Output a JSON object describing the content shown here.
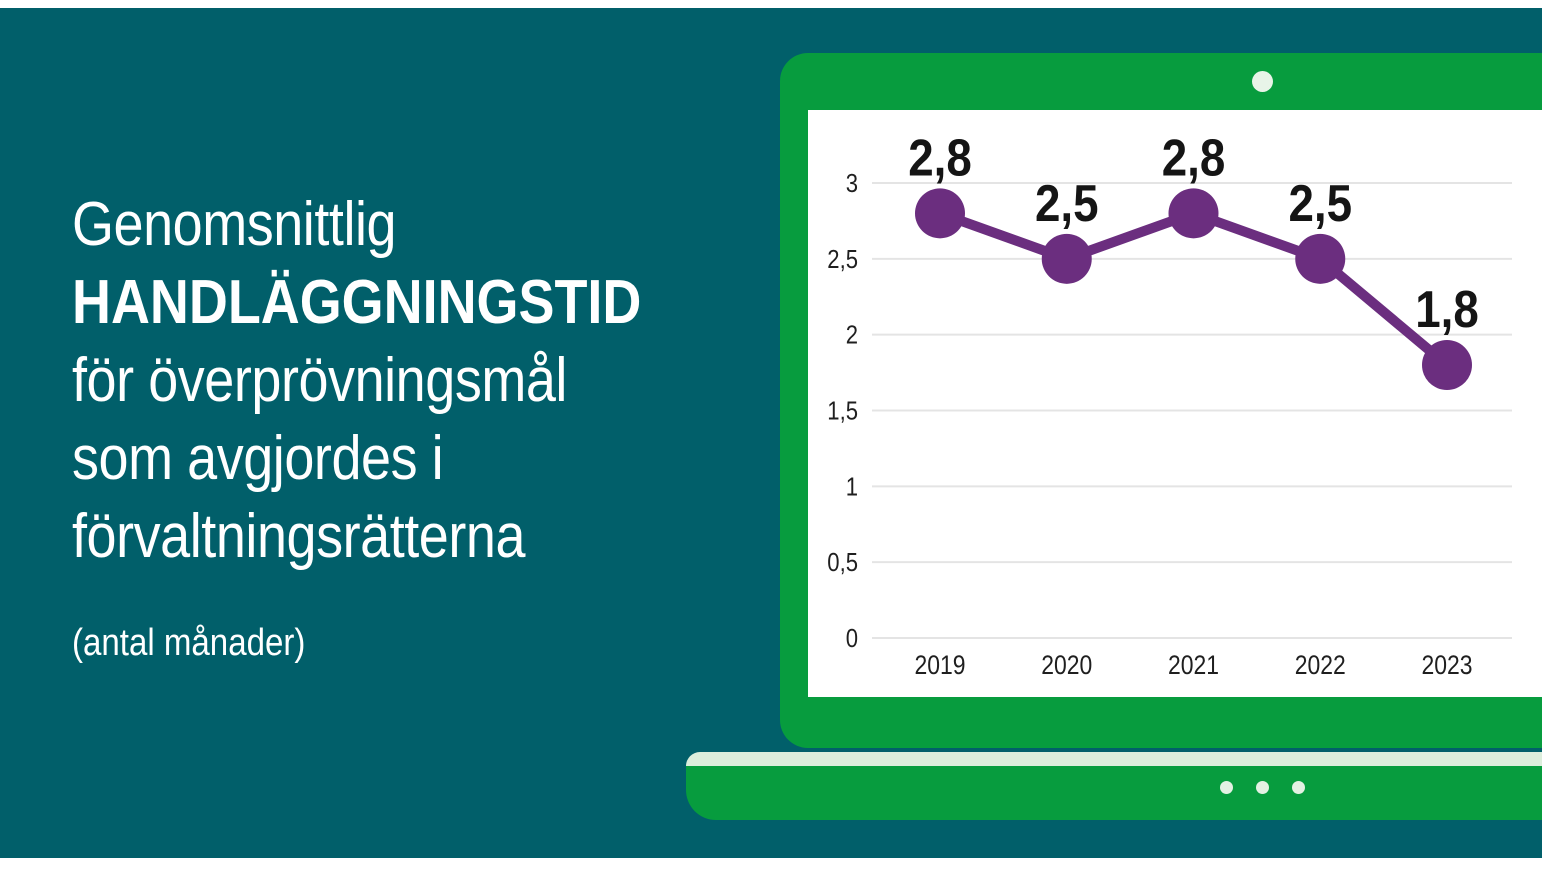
{
  "title": {
    "lines": [
      "Genomsnittlig",
      "HANDLÄGGNINGSTID",
      "för överprövningsmål",
      "som avgjordes i",
      "förvaltningsrätterna"
    ],
    "subtitle": "(antal månader)"
  },
  "colors": {
    "poster_teal": "#015F6A",
    "laptop_green": "#079C3E",
    "base_stripe_mint": "#DCEEDC",
    "camera_dot_mint": "#E8F4E8",
    "base_dot_mint": "#E3F1E3",
    "screen_white": "#FFFFFF"
  },
  "chart_data": {
    "type": "line",
    "categories": [
      "2019",
      "2020",
      "2021",
      "2022",
      "2023"
    ],
    "values": [
      2.8,
      2.5,
      2.8,
      2.5,
      1.8
    ],
    "value_labels": [
      "2,8",
      "2,5",
      "2,8",
      "2,5",
      "1,8"
    ],
    "y_tick_values": [
      0,
      0.5,
      1,
      1.5,
      2,
      2.5,
      3
    ],
    "y_tick_labels": [
      "0",
      "0,5",
      "1",
      "1,5",
      "2",
      "2,5",
      "3"
    ],
    "ylim": [
      0,
      3
    ],
    "grid": true,
    "legend": false,
    "line_color": "#6B2E7F",
    "marker_color": "#6B2E7F",
    "grid_color": "#E4E4E4",
    "tick_label_color": "#1F1F1F",
    "value_label_color": "#151515"
  }
}
